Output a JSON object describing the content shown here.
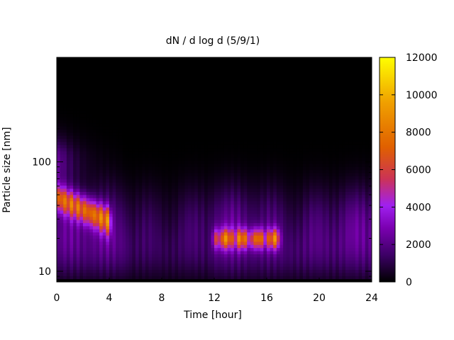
{
  "chart_data": {
    "type": "heatmap",
    "title": "dN / d log d (5/9/1)",
    "xlabel": "Time [hour]",
    "ylabel": "Particle size [nm]",
    "xlim": [
      0,
      24
    ],
    "ylim": [
      8,
      900
    ],
    "y_scale": "log",
    "x_ticks": [
      0,
      4,
      8,
      12,
      16,
      20,
      24
    ],
    "x_tick_labels": [
      "0",
      "4",
      "8",
      "12",
      "16",
      "20",
      "24"
    ],
    "y_ticks": [
      10,
      100
    ],
    "y_tick_labels": [
      "10",
      "100"
    ],
    "colorbar": {
      "range": [
        0,
        12000
      ],
      "ticks": [
        0,
        2000,
        4000,
        6000,
        8000,
        10000,
        12000
      ],
      "tick_labels": [
        "0",
        "2000",
        "4000",
        "6000",
        "8000",
        "10000",
        "12000"
      ],
      "colormap": [
        "#000000",
        "#3d0066",
        "#7a00b0",
        "#a020f0",
        "#cc3355",
        "#e06000",
        "#f0a000",
        "#ffff00"
      ]
    },
    "features": [
      {
        "t": [
          0,
          4.2
        ],
        "d": [
          22,
          60
        ],
        "peak": 8800
      },
      {
        "t": [
          12,
          17
        ],
        "d": [
          15,
          30
        ],
        "peak": 9500
      }
    ]
  }
}
